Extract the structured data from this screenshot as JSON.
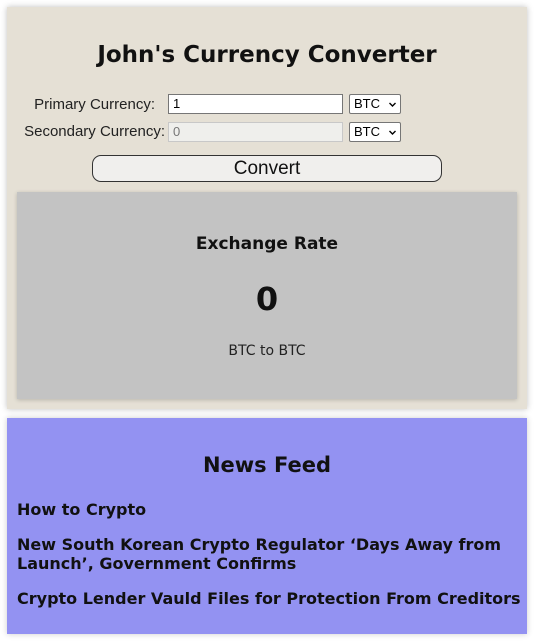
{
  "converter": {
    "title": "John's Currency Converter",
    "primary_label": "Primary Currency:",
    "primary_value": "1",
    "primary_currency": "BTC",
    "secondary_label": "Secondary Currency:",
    "secondary_value": "0",
    "secondary_currency": "BTC",
    "convert_label": "Convert"
  },
  "exchange": {
    "title": "Exchange Rate",
    "rate": "0",
    "pair": "BTC to BTC"
  },
  "news": {
    "title": "News Feed",
    "items": [
      "How to Crypto",
      "New South Korean Crypto Regulator ‘Days Away from Launch’, Government Confirms",
      "Crypto Lender Vauld Files for Protection From Creditors"
    ]
  },
  "colors": {
    "converter_bg": "#e5e0d5",
    "rate_panel_bg": "#c3c3c3",
    "news_bg": "#9392f2"
  },
  "icons": {
    "select_arrow": "chevron-down-icon"
  }
}
